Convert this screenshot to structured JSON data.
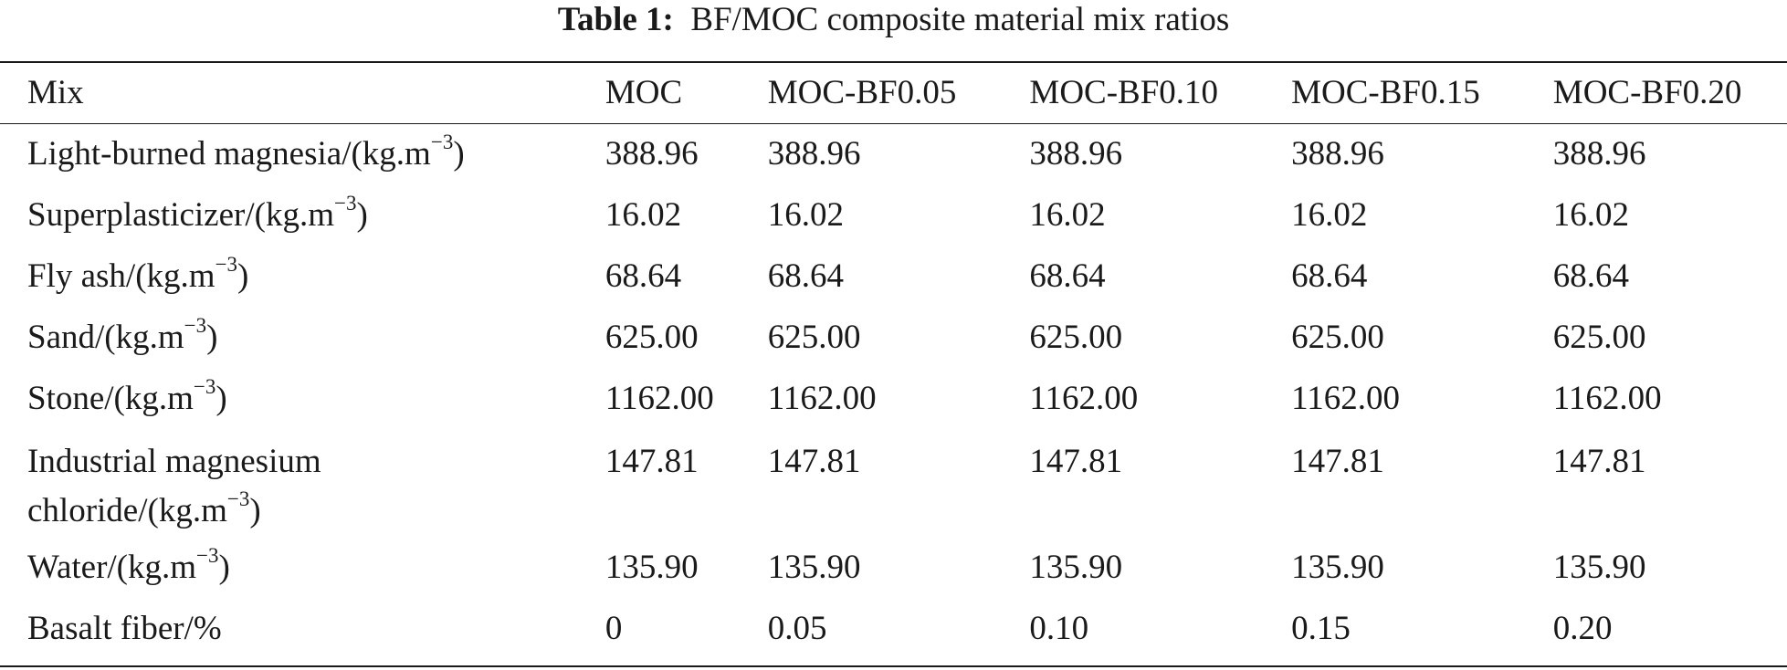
{
  "table": {
    "caption_label": "Table 1:",
    "caption_text": "BF/MOC composite material mix ratios",
    "header": [
      "Mix",
      "MOC",
      "MOC-BF0.05",
      "MOC-BF0.10",
      "MOC-BF0.15",
      "MOC-BF0.20"
    ],
    "rows": [
      {
        "label": "Light-burned magnesia/(kg.m",
        "sup": "−3",
        "tail": ")",
        "values": [
          "388.96",
          "388.96",
          "388.96",
          "388.96",
          "388.96"
        ]
      },
      {
        "label": "Superplasticizer/(kg.m",
        "sup": "−3",
        "tail": ")",
        "values": [
          "16.02",
          "16.02",
          "16.02",
          "16.02",
          "16.02"
        ]
      },
      {
        "label": "Fly ash/(kg.m",
        "sup": "−3",
        "tail": ")",
        "values": [
          "68.64",
          "68.64",
          "68.64",
          "68.64",
          "68.64"
        ]
      },
      {
        "label": "Sand/(kg.m",
        "sup": "−3",
        "tail": ")",
        "values": [
          "625.00",
          "625.00",
          "625.00",
          "625.00",
          "625.00"
        ]
      },
      {
        "label": "Stone/(kg.m",
        "sup": "−3",
        "tail": ")",
        "values": [
          "1162.00",
          "1162.00",
          "1162.00",
          "1162.00",
          "1162.00"
        ]
      },
      {
        "label_line1": "Industrial magnesium",
        "label": "chloride/(kg.m",
        "sup": "−3",
        "tail": ")",
        "values": [
          "147.81",
          "147.81",
          "147.81",
          "147.81",
          "147.81"
        ]
      },
      {
        "label": "Water/(kg.m",
        "sup": "−3",
        "tail": ")",
        "values": [
          "135.90",
          "135.90",
          "135.90",
          "135.90",
          "135.90"
        ]
      },
      {
        "label": "Basalt fiber/%",
        "values": [
          "0",
          "0.05",
          "0.10",
          "0.15",
          "0.20"
        ]
      }
    ]
  }
}
